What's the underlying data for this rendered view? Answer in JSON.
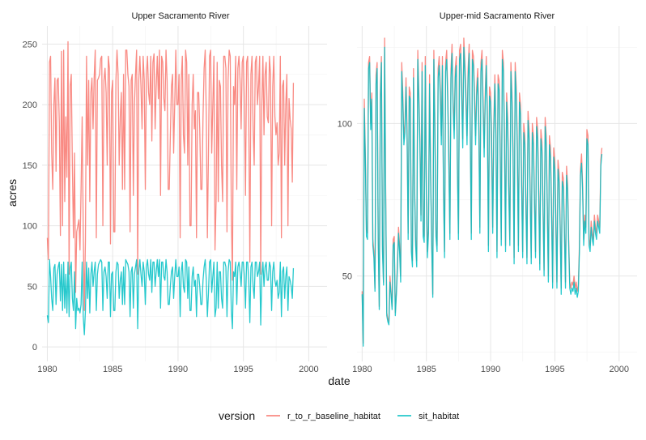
{
  "chart_data": {
    "type": "line",
    "xlabel": "date",
    "ylabel": "acres",
    "legend": {
      "title": "version",
      "position": "bottom"
    },
    "series_styles": [
      {
        "name": "r_to_r_baseline_habitat",
        "color": "#F8766D"
      },
      {
        "name": "sit_habitat",
        "color": "#00BFC4"
      }
    ],
    "panels": [
      {
        "title": "Upper Sacramento River",
        "xlim": [
          1979.6,
          2001.4
        ],
        "ylim": [
          -12,
          265
        ],
        "xticks": [
          "1980",
          "1985",
          "1990",
          "1995",
          "2000"
        ],
        "yticks": [
          "0",
          "50",
          "100",
          "150",
          "200",
          "250"
        ],
        "x_start": 1980.0,
        "x_step": 0.0833,
        "series": [
          {
            "name": "r_to_r_baseline_habitat",
            "values": [
              90,
              72,
              235,
              240,
              160,
              130,
              200,
              222,
              145,
              220,
              222,
              185,
              92,
              244,
              100,
              245,
              120,
              190,
              140,
              252,
              60,
              215,
              225,
              150,
              90,
              160,
              45,
              95,
              100,
              105,
              80,
              130,
              190,
              95,
              30,
              88,
              240,
              150,
              220,
              120,
              210,
              222,
              180,
              222,
              245,
              90,
              220,
              222,
              225,
              238,
              240,
              100,
              220,
              230,
              210,
              150,
              240,
              230,
              85,
              210,
              220,
              95,
              95,
              220,
              245,
              225,
              150,
              190,
              210,
              130,
              225,
              130,
              245,
              245,
              225,
              215,
              95,
              220,
              225,
              125,
              200,
              225,
              245,
              60,
              220,
              240,
              215,
              180,
              240,
              220,
              130,
              225,
              240,
              210,
              200,
              240,
              170,
              235,
              242,
              180,
              215,
              240,
              205,
              245,
              125,
              240,
              235,
              205,
              195,
              245,
              220,
              130,
              130,
              175,
              215,
              225,
              160,
              200,
              245,
              200,
              200,
              225,
              90,
              220,
              240,
              175,
              160,
              245,
              235,
              150,
              225,
              100,
              100,
              200,
              225,
              180,
              195,
              90,
              210,
              210,
              180,
              130,
              130,
              190,
              230,
              245,
              190,
              90,
              160,
              240,
              245,
              160,
              200,
              240,
              80,
              120,
              235,
              120,
              220,
              215,
              150,
              120,
              240,
              240,
              230,
              95,
              220,
              245,
              240,
              110,
              55,
              215,
              200,
              240,
              130,
              230,
              240,
              220,
              180,
              235,
              240,
              200,
              125,
              235,
              240,
              190,
              70,
              225,
              240,
              180,
              150,
              235,
              240,
              200,
              215,
              240,
              60,
              200,
              240,
              175,
              225,
              235,
              190,
              185,
              240,
              225,
              100,
              215,
              240,
              190,
              175,
              185,
              150,
              160,
              240,
              90,
              215,
              220,
              150,
              200,
              225,
              100,
              205,
              188,
              180,
              136,
              218
            ]
          },
          {
            "name": "sit_habitat",
            "values": [
              26,
              20,
              72,
              58,
              40,
              30,
              65,
              68,
              35,
              60,
              66,
              70,
              38,
              68,
              30,
              70,
              32,
              60,
              28,
              70,
              25,
              65,
              70,
              40,
              30,
              62,
              15,
              40,
              30,
              32,
              28,
              35,
              70,
              25,
              10,
              30,
              70,
              40,
              65,
              28,
              60,
              70,
              50,
              62,
              70,
              30,
              60,
              68,
              70,
              72,
              70,
              30,
              62,
              66,
              58,
              40,
              70,
              70,
              25,
              60,
              62,
              30,
              30,
              62,
              70,
              68,
              40,
              55,
              62,
              35,
              66,
              35,
              72,
              70,
              68,
              62,
              25,
              62,
              66,
              32,
              60,
              66,
              72,
              15,
              62,
              72,
              60,
              50,
              70,
              62,
              35,
              66,
              72,
              60,
              55,
              72,
              45,
              70,
              70,
              50,
              62,
              72,
              58,
              72,
              32,
              70,
              70,
              58,
              55,
              72,
              62,
              35,
              35,
              50,
              62,
              66,
              40,
              58,
              72,
              58,
              58,
              66,
              25,
              62,
              70,
              50,
              45,
              72,
              70,
              40,
              66,
              30,
              30,
              58,
              66,
              50,
              55,
              25,
              60,
              60,
              50,
              35,
              35,
              55,
              66,
              72,
              55,
              25,
              45,
              70,
              72,
              45,
              58,
              70,
              25,
              32,
              70,
              32,
              62,
              62,
              40,
              32,
              70,
              70,
              66,
              25,
              62,
              72,
              70,
              30,
              15,
              62,
              58,
              70,
              35,
              66,
              70,
              62,
              50,
              70,
              70,
              58,
              32,
              70,
              70,
              55,
              20,
              66,
              70,
              50,
              40,
              70,
              70,
              58,
              62,
              70,
              18,
              58,
              70,
              50,
              66,
              70,
              55,
              55,
              70,
              66,
              30,
              62,
              70,
              55,
              50,
              55,
              40,
              45,
              70,
              25,
              62,
              66,
              40,
              58,
              66,
              30,
              58,
              55,
              50,
              40,
              65
            ]
          }
        ]
      },
      {
        "title": "Upper-mid Sacramento River",
        "xlim": [
          1979.6,
          2001.4
        ],
        "ylim": [
          22,
          132
        ],
        "xticks": [
          "1980",
          "1985",
          "1990",
          "1995",
          "2000"
        ],
        "yticks": [
          "50",
          "100"
        ],
        "x_start": 1980.0,
        "x_step": 0.0833,
        "series": [
          {
            "name": "r_to_r_baseline_habitat",
            "values": [
              45,
              28,
              108,
              90,
              65,
              64,
              120,
              122,
              100,
              110,
              62,
              58,
              46,
              116,
              120,
              64,
              40,
              110,
              122,
              60,
              48,
              128,
              78,
              38,
              36,
              35,
              50,
              45,
              40,
              62,
              63,
              38,
              45,
              55,
              66,
              60,
              50,
              120,
              110,
              95,
              100,
              115,
              98,
              64,
              112,
              110,
              60,
              55,
              118,
              80,
              62,
              55,
              124,
              110,
              95,
              70,
              120,
              65,
              63,
              122,
              80,
              58,
              66,
              116,
              84,
              62,
              44,
              124,
              100,
              65,
              60,
              118,
              122,
              112,
              96,
              122,
              80,
              58,
              120,
              124,
              110,
              90,
              64,
              118,
              126,
              108,
              98,
              118,
              122,
              88,
              64,
              124,
              126,
              112,
              95,
              128,
              120,
              110,
              96,
              118,
              126,
              100,
              64,
              124,
              122,
              110,
              96,
              112,
              118,
              102,
              66,
              120,
              124,
              108,
              92,
              110,
              122,
              104,
              60,
              112,
              110,
              96,
              66,
              100,
              116,
              98,
              58,
              116,
              114,
              92,
              62,
              124,
              120,
              96,
              60,
              110,
              102,
              80,
              62,
              120,
              110,
              92,
              56,
              120,
              112,
              94,
              60,
              110,
              106,
              82,
              58,
              100,
              96,
              75,
              56,
              104,
              98,
              78,
              56,
              100,
              96,
              76,
              58,
              102,
              98,
              78,
              54,
              98,
              94,
              74,
              52,
              102,
              96,
              74,
              50,
              96,
              92,
              72,
              48,
              92,
              88,
              70,
              48,
              88,
              84,
              68,
              46,
              84,
              82,
              66,
              48,
              86,
              80,
              62,
              48,
              46,
              48,
              47,
              50,
              46,
              48,
              45,
              47,
              60,
              85,
              90,
              80,
              62,
              70,
              66,
              98,
              96,
              62,
              60,
              68,
              64,
              62,
              70,
              66,
              64,
              70,
              68,
              66,
              88,
              92
            ]
          },
          {
            "name": "sit_habitat",
            "values": [
              44,
              27,
              105,
              88,
              63,
              62,
              118,
              120,
              98,
              108,
              60,
              56,
              45,
              113,
              118,
              62,
              39,
              107,
              120,
              58,
              47,
              125,
              76,
              37,
              35,
              34,
              48,
              44,
              39,
              60,
              61,
              37,
              44,
              53,
              64,
              58,
              48,
              117,
              107,
              93,
              97,
              112,
              95,
              62,
              109,
              108,
              58,
              53,
              115,
              78,
              60,
              53,
              121,
              107,
              93,
              68,
              117,
              63,
              61,
              119,
              78,
              56,
              64,
              113,
              82,
              60,
              43,
              121,
              97,
              63,
              58,
              115,
              119,
              109,
              93,
              119,
              78,
              56,
              117,
              121,
              107,
              87,
              62,
              115,
              123,
              105,
              95,
              115,
              119,
              85,
              62,
              121,
              123,
              109,
              92,
              125,
              117,
              107,
              93,
              115,
              123,
              97,
              62,
              121,
              119,
              107,
              93,
              109,
              115,
              99,
              64,
              117,
              121,
              105,
              89,
              107,
              119,
              101,
              58,
              109,
              107,
              93,
              64,
              97,
              113,
              95,
              56,
              113,
              111,
              89,
              60,
              121,
              117,
              93,
              58,
              107,
              99,
              78,
              60,
              117,
              107,
              89,
              54,
              117,
              109,
              91,
              58,
              107,
              103,
              80,
              56,
              97,
              93,
              73,
              54,
              101,
              95,
              76,
              54,
              97,
              93,
              74,
              56,
              99,
              95,
              76,
              52,
              95,
              91,
              72,
              50,
              99,
              93,
              72,
              48,
              93,
              89,
              70,
              46,
              89,
              85,
              68,
              46,
              85,
              81,
              66,
              44,
              81,
              79,
              64,
              46,
              83,
              78,
              60,
              46,
              44,
              46,
              45,
              48,
              44,
              46,
              43,
              45,
              58,
              83,
              87,
              78,
              60,
              68,
              64,
              95,
              93,
              60,
              58,
              66,
              62,
              60,
              68,
              64,
              62,
              68,
              66,
              64,
              86,
              90
            ]
          }
        ]
      }
    ]
  }
}
